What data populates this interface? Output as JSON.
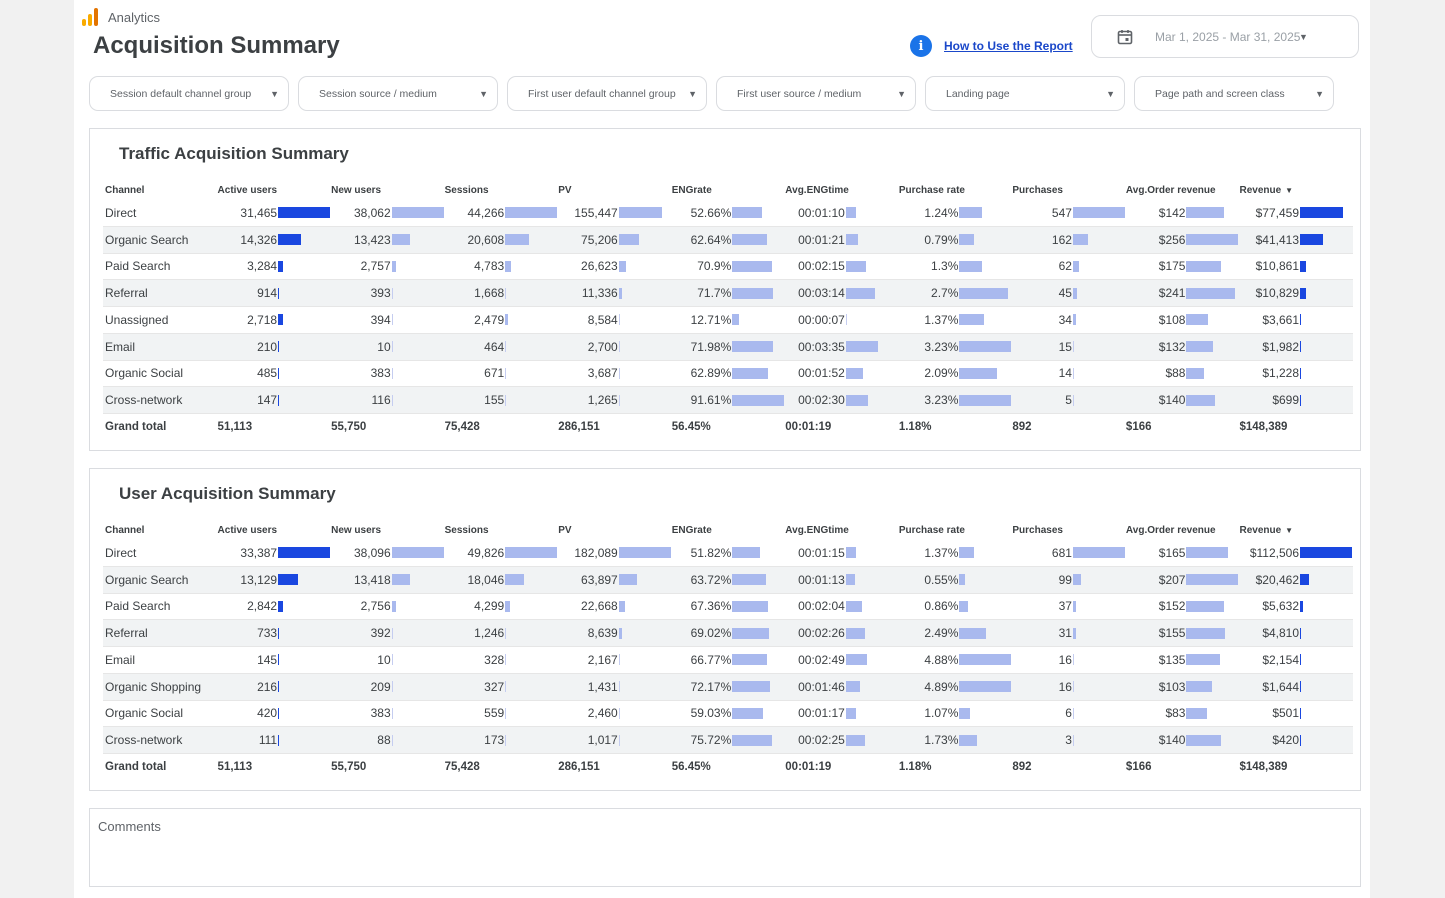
{
  "brand": {
    "name": "Analytics",
    "logo_icon": "analytics-logo-icon"
  },
  "page_title": "Acquisition Summary",
  "help": {
    "icon": "info-icon",
    "link": "How to Use the Report"
  },
  "date_range": {
    "icon": "calendar-icon",
    "value": "Mar 1, 2025 - Mar 31, 2025"
  },
  "filters": [
    {
      "label": "Session default channel group"
    },
    {
      "label": "Session source / medium"
    },
    {
      "label": "First user default channel group"
    },
    {
      "label": "First user source / medium"
    },
    {
      "label": "Landing page"
    },
    {
      "label": "Page path and screen class"
    }
  ],
  "colors": {
    "accent": "#1a73e8",
    "bar_strong": "#1a47e0",
    "bar_light": "#a9b9ee",
    "link": "#1a47c9"
  },
  "columns": [
    "Channel",
    "Active users",
    "New users",
    "Sessions",
    "PV",
    "ENGrate",
    "Avg.ENGtime",
    "Purchase rate",
    "Purchases",
    "Avg.Order revenue",
    "Revenue"
  ],
  "sort_indicator": "▼",
  "traffic": {
    "title": "Traffic Acquisition Summary",
    "rows": [
      {
        "channel": "Direct",
        "cells": [
          "31,465",
          "38,062",
          "44,266",
          "155,447",
          "52.66%",
          "00:01:10",
          "1.24%",
          "547",
          "$142",
          "$77,459"
        ],
        "fills": [
          1.0,
          1.0,
          1.0,
          0.82,
          0.58,
          0.2,
          0.45,
          1.0,
          0.74,
          0.82
        ]
      },
      {
        "channel": "Organic Search",
        "cells": [
          "14,326",
          "13,423",
          "20,608",
          "75,206",
          "62.64%",
          "00:01:21",
          "0.79%",
          "162",
          "$256",
          "$41,413"
        ],
        "fills": [
          0.45,
          0.35,
          0.47,
          0.39,
          0.68,
          0.23,
          0.29,
          0.29,
          1.0,
          0.44
        ]
      },
      {
        "channel": "Paid Search",
        "cells": [
          "3,284",
          "2,757",
          "4,783",
          "26,623",
          "70.9%",
          "00:02:15",
          "1.3%",
          "62",
          "$175",
          "$10,861"
        ],
        "fills": [
          0.1,
          0.07,
          0.11,
          0.14,
          0.77,
          0.39,
          0.45,
          0.11,
          0.68,
          0.12
        ]
      },
      {
        "channel": "Referral",
        "cells": [
          "914",
          "393",
          "1,668",
          "11,336",
          "71.7%",
          "00:03:14",
          "2.7%",
          "45",
          "$241",
          "$10,829"
        ],
        "fills": [
          0.03,
          0.01,
          0.04,
          0.06,
          0.78,
          0.56,
          0.94,
          0.08,
          0.94,
          0.12
        ]
      },
      {
        "channel": "Unassigned",
        "cells": [
          "2,718",
          "394",
          "2,479",
          "8,584",
          "12.71%",
          "00:00:07",
          "1.37%",
          "34",
          "$108",
          "$3,661"
        ],
        "fills": [
          0.09,
          0.01,
          0.06,
          0.04,
          0.14,
          0.02,
          0.48,
          0.06,
          0.42,
          0.04
        ]
      },
      {
        "channel": "Email",
        "cells": [
          "210",
          "10",
          "464",
          "2,700",
          "71.98%",
          "00:03:35",
          "3.23%",
          "15",
          "$132",
          "$1,982"
        ],
        "fills": [
          0.01,
          0.0,
          0.01,
          0.01,
          0.79,
          0.62,
          1.0,
          0.03,
          0.52,
          0.02
        ]
      },
      {
        "channel": "Organic Social",
        "cells": [
          "485",
          "383",
          "671",
          "3,687",
          "62.89%",
          "00:01:52",
          "2.09%",
          "14",
          "$88",
          "$1,228"
        ],
        "fills": [
          0.02,
          0.01,
          0.02,
          0.02,
          0.69,
          0.32,
          0.73,
          0.03,
          0.34,
          0.01
        ]
      },
      {
        "channel": "Cross-network",
        "cells": [
          "147",
          "116",
          "155",
          "1,265",
          "91.61%",
          "00:02:30",
          "3.23%",
          "5",
          "$140",
          "$699"
        ],
        "fills": [
          0.0,
          0.0,
          0.0,
          0.01,
          1.0,
          0.43,
          1.0,
          0.01,
          0.55,
          0.01
        ]
      }
    ],
    "total": {
      "label": "Grand total",
      "cells": [
        "51,113",
        "55,750",
        "75,428",
        "286,151",
        "56.45%",
        "00:01:19",
        "1.18%",
        "892",
        "$166",
        "$148,389"
      ]
    }
  },
  "user": {
    "title": "User Acquisition Summary",
    "rows": [
      {
        "channel": "Direct",
        "cells": [
          "33,387",
          "38,096",
          "49,826",
          "182,089",
          "51.82%",
          "00:01:15",
          "1.37%",
          "681",
          "$165",
          "$112,506"
        ],
        "fills": [
          1.0,
          1.0,
          1.0,
          1.0,
          0.53,
          0.19,
          0.28,
          1.0,
          0.8,
          1.0
        ]
      },
      {
        "channel": "Organic Search",
        "cells": [
          "13,129",
          "13,418",
          "18,046",
          "63,897",
          "63.72%",
          "00:01:13",
          "0.55%",
          "99",
          "$207",
          "$20,462"
        ],
        "fills": [
          0.39,
          0.35,
          0.36,
          0.35,
          0.65,
          0.18,
          0.11,
          0.15,
          1.0,
          0.18
        ]
      },
      {
        "channel": "Paid Search",
        "cells": [
          "2,842",
          "2,756",
          "4,299",
          "22,668",
          "67.36%",
          "00:02:04",
          "0.86%",
          "37",
          "$152",
          "$5,632"
        ],
        "fills": [
          0.09,
          0.07,
          0.09,
          0.12,
          0.69,
          0.3,
          0.18,
          0.05,
          0.73,
          0.05
        ]
      },
      {
        "channel": "Referral",
        "cells": [
          "733",
          "392",
          "1,246",
          "8,639",
          "69.02%",
          "00:02:26",
          "2.49%",
          "31",
          "$155",
          "$4,810"
        ],
        "fills": [
          0.02,
          0.01,
          0.03,
          0.05,
          0.71,
          0.36,
          0.51,
          0.05,
          0.75,
          0.04
        ]
      },
      {
        "channel": "Email",
        "cells": [
          "145",
          "10",
          "328",
          "2,167",
          "66.77%",
          "00:02:49",
          "4.88%",
          "16",
          "$135",
          "$2,154"
        ],
        "fills": [
          0.0,
          0.0,
          0.01,
          0.01,
          0.68,
          0.41,
          1.0,
          0.02,
          0.65,
          0.02
        ]
      },
      {
        "channel": "Organic Shopping",
        "cells": [
          "216",
          "209",
          "327",
          "1,431",
          "72.17%",
          "00:01:46",
          "4.89%",
          "16",
          "$103",
          "$1,644"
        ],
        "fills": [
          0.01,
          0.01,
          0.01,
          0.01,
          0.74,
          0.26,
          1.0,
          0.02,
          0.5,
          0.01
        ]
      },
      {
        "channel": "Organic Social",
        "cells": [
          "420",
          "383",
          "559",
          "2,460",
          "59.03%",
          "00:01:17",
          "1.07%",
          "6",
          "$83",
          "$501"
        ],
        "fills": [
          0.01,
          0.01,
          0.01,
          0.01,
          0.6,
          0.19,
          0.22,
          0.01,
          0.4,
          0.0
        ]
      },
      {
        "channel": "Cross-network",
        "cells": [
          "111",
          "88",
          "173",
          "1,017",
          "75.72%",
          "00:02:25",
          "1.73%",
          "3",
          "$140",
          "$420"
        ],
        "fills": [
          0.0,
          0.0,
          0.0,
          0.01,
          0.77,
          0.36,
          0.35,
          0.0,
          0.68,
          0.0
        ]
      }
    ],
    "total": {
      "label": "Grand total",
      "cells": [
        "51,113",
        "55,750",
        "75,428",
        "286,151",
        "56.45%",
        "00:01:19",
        "1.18%",
        "892",
        "$166",
        "$148,389"
      ]
    }
  },
  "comments": {
    "label": "Comments"
  }
}
